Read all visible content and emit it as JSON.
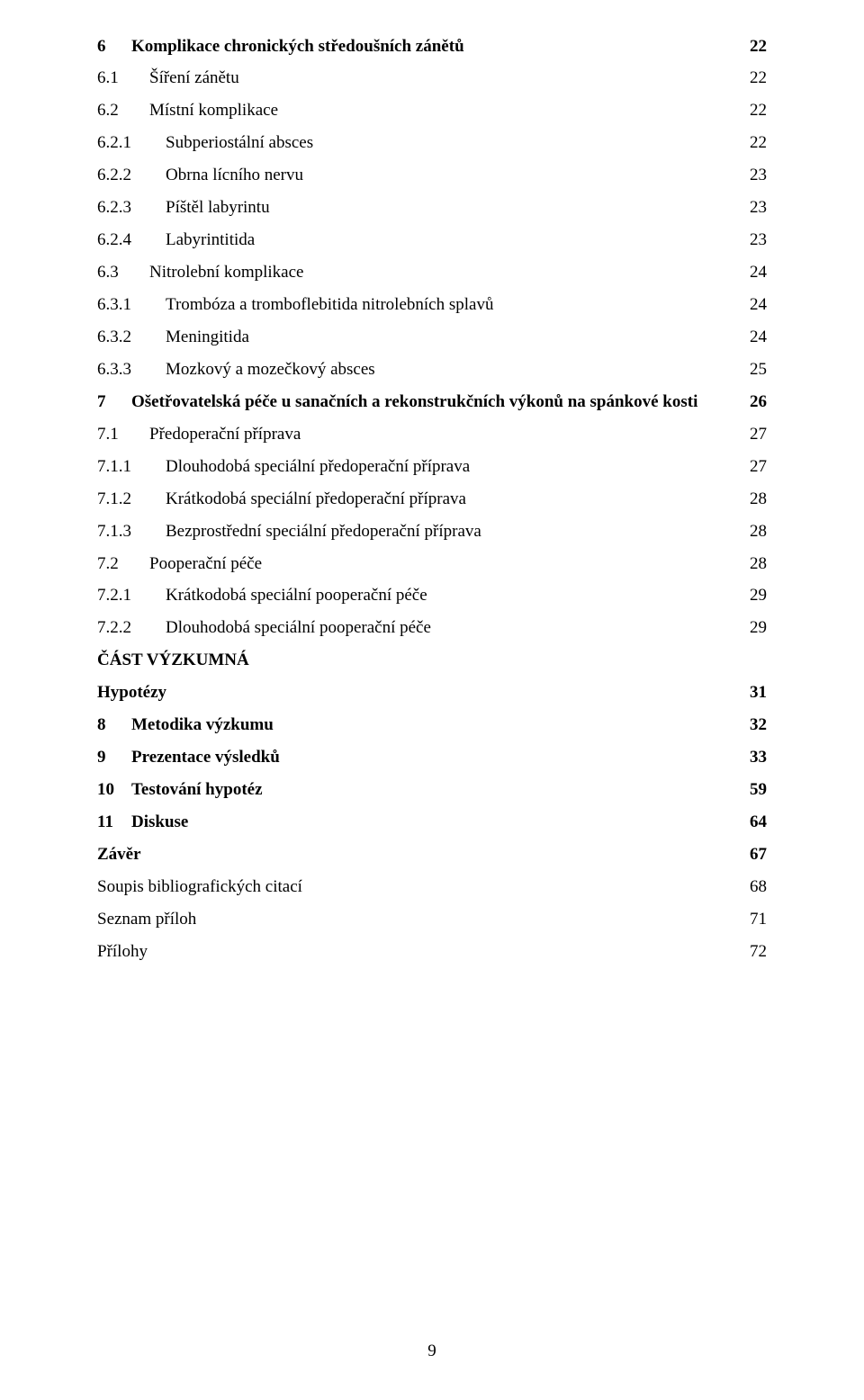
{
  "pageNumber": "9",
  "toc": [
    {
      "level": 0,
      "bold": true,
      "num": "6",
      "title": "Komplikace chronických středoušních zánětů",
      "page": "22"
    },
    {
      "level": 1,
      "bold": false,
      "num": "6.1",
      "title": "Šíření zánětu",
      "page": "22"
    },
    {
      "level": 1,
      "bold": false,
      "num": "6.2",
      "title": "Místní komplikace",
      "page": "22"
    },
    {
      "level": 2,
      "bold": false,
      "num": "6.2.1",
      "title": "Subperiostální absces",
      "page": "22"
    },
    {
      "level": 2,
      "bold": false,
      "num": "6.2.2",
      "title": "Obrna lícního nervu",
      "page": "23"
    },
    {
      "level": 2,
      "bold": false,
      "num": "6.2.3",
      "title": "Píštěl labyrintu",
      "page": "23"
    },
    {
      "level": 2,
      "bold": false,
      "num": "6.2.4",
      "title": "Labyrintitida",
      "page": "23"
    },
    {
      "level": 1,
      "bold": false,
      "num": "6.3",
      "title": "Nitrolební komplikace",
      "page": "24"
    },
    {
      "level": 2,
      "bold": false,
      "num": "6.3.1",
      "title": "Trombóza a tromboflebitida nitrolebních splavů",
      "page": "24"
    },
    {
      "level": 2,
      "bold": false,
      "num": "6.3.2",
      "title": "Meningitida",
      "page": "24"
    },
    {
      "level": 2,
      "bold": false,
      "num": "6.3.3",
      "title": "Mozkový a mozečkový absces",
      "page": "25"
    },
    {
      "level": 0,
      "bold": true,
      "num": "7",
      "title": "Ošetřovatelská péče u sanačních a rekonstrukčních výkonů na spánkové kosti",
      "page": "26"
    },
    {
      "level": 1,
      "bold": false,
      "num": "7.1",
      "title": "Předoperační příprava",
      "page": "27"
    },
    {
      "level": 2,
      "bold": false,
      "num": "7.1.1",
      "title": "Dlouhodobá speciální předoperační příprava",
      "page": "27"
    },
    {
      "level": 2,
      "bold": false,
      "num": "7.1.2",
      "title": "Krátkodobá speciální předoperační příprava",
      "page": "28"
    },
    {
      "level": 2,
      "bold": false,
      "num": "7.1.3",
      "title": "Bezprostřední speciální předoperační příprava",
      "page": "28"
    },
    {
      "level": 1,
      "bold": false,
      "num": "7.2",
      "title": "Pooperační péče",
      "page": "28"
    },
    {
      "level": 2,
      "bold": false,
      "num": "7.2.1",
      "title": "Krátkodobá speciální pooperační péče",
      "page": "29"
    },
    {
      "level": 2,
      "bold": false,
      "num": "7.2.2",
      "title": "Dlouhodobá speciální pooperační péče",
      "page": "29"
    },
    {
      "level": 0,
      "bold": true,
      "num": "",
      "title": "ČÁST  VÝZKUMNÁ",
      "page": "",
      "noLeader": true
    },
    {
      "level": 0,
      "bold": true,
      "num": "",
      "title": "Hypotézy",
      "page": "31"
    },
    {
      "level": 0,
      "bold": true,
      "num": "8",
      "title": "Metodika výzkumu",
      "page": "32"
    },
    {
      "level": 0,
      "bold": true,
      "num": "9",
      "title": "Prezentace výsledků",
      "page": "33"
    },
    {
      "level": 0,
      "bold": true,
      "num": "10",
      "title": "Testování hypotéz",
      "page": "59"
    },
    {
      "level": 0,
      "bold": true,
      "num": "11",
      "title": "Diskuse",
      "page": "64"
    },
    {
      "level": 0,
      "bold": true,
      "num": "",
      "title": "Závěr",
      "page": "67"
    },
    {
      "level": 0,
      "bold": false,
      "num": "",
      "title": "Soupis bibliografických citací",
      "page": "68"
    },
    {
      "level": 0,
      "bold": false,
      "num": "",
      "title": "Seznam příloh",
      "page": "71"
    },
    {
      "level": 0,
      "bold": false,
      "num": "",
      "title": "Přílohy",
      "page": "72"
    }
  ]
}
